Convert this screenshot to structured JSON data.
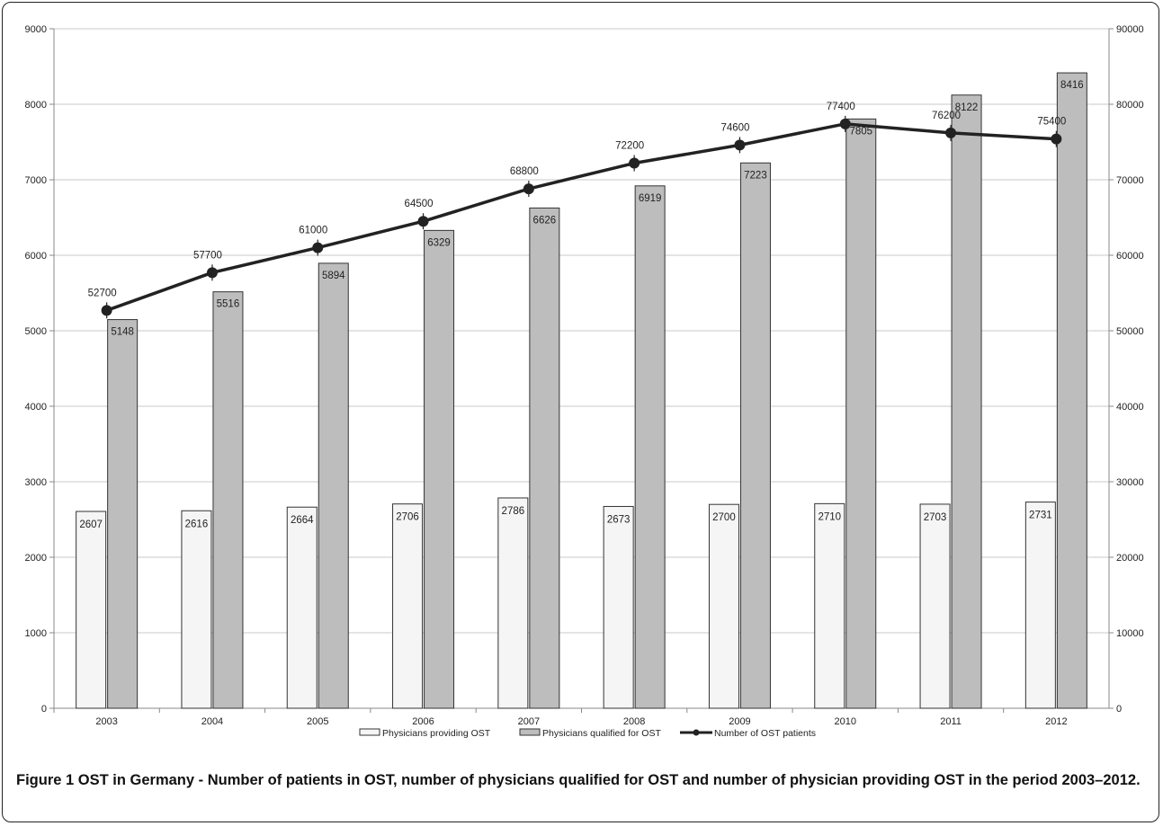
{
  "chart_data": {
    "type": "bar",
    "categories": [
      "2003",
      "2004",
      "2005",
      "2006",
      "2007",
      "2008",
      "2009",
      "2010",
      "2011",
      "2012"
    ],
    "series": [
      {
        "name": "Physicians providing OST",
        "kind": "bar",
        "axis": "left",
        "color": "#f5f5f5",
        "values": [
          2607,
          2616,
          2664,
          2706,
          2786,
          2673,
          2700,
          2710,
          2703,
          2731
        ]
      },
      {
        "name": "Physicians qualified for OST",
        "kind": "bar",
        "axis": "left",
        "color": "#bdbdbd",
        "values": [
          5148,
          5516,
          5894,
          6329,
          6626,
          6919,
          7223,
          7805,
          8122,
          8416
        ]
      },
      {
        "name": "Number of OST patients",
        "kind": "line",
        "axis": "right",
        "color": "#222222",
        "values": [
          52700,
          57700,
          61000,
          64500,
          68800,
          72200,
          74600,
          77400,
          76200,
          75400
        ]
      }
    ],
    "ylim_left": [
      0,
      9000
    ],
    "ylim_right": [
      0,
      90000
    ],
    "yticks_left": [
      "0",
      "1000",
      "2000",
      "3000",
      "4000",
      "5000",
      "6000",
      "7000",
      "8000",
      "9000"
    ],
    "yticks_right": [
      "0",
      "10000",
      "20000",
      "30000",
      "40000",
      "50000",
      "60000",
      "70000",
      "80000",
      "90000"
    ],
    "grid": true,
    "legend_position": "bottom"
  },
  "caption": {
    "label": "Figure 1",
    "text": "OST in Germany - Number of patients in OST, number of physicians qualified for OST and number of physician providing OST in the period 2003–2012."
  }
}
